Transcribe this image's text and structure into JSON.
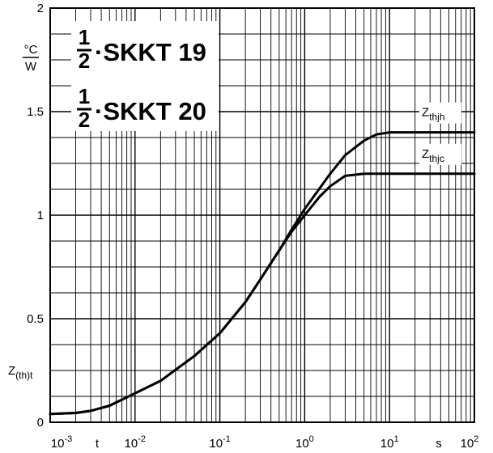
{
  "chart_data": {
    "type": "line",
    "title_prefix": "1/2",
    "title_lines": [
      "SKKT 19",
      "SKKT 20"
    ],
    "y_unit": "°C/W",
    "y_label": "Z(th)t",
    "x_symbol": "t",
    "x_unit": "s",
    "x_scale": "log",
    "xlim": [
      0.001,
      100
    ],
    "ylim": [
      0,
      2
    ],
    "x_ticks": [
      {
        "exp": "-3",
        "v": 0.001
      },
      {
        "exp": "-2",
        "v": 0.01
      },
      {
        "exp": "-1",
        "v": 0.1
      },
      {
        "exp": "0",
        "v": 1
      },
      {
        "exp": "1",
        "v": 10
      },
      {
        "exp": "2",
        "v": 100
      }
    ],
    "x_tick_base": "10",
    "y_ticks": [
      "0",
      "0.5",
      "1",
      "1.5",
      "2"
    ],
    "grid": true,
    "series": [
      {
        "name": "Z(th)jh",
        "label_main": "Z",
        "label_sub": "thjh",
        "x": [
          0.001,
          0.002,
          0.003,
          0.005,
          0.01,
          0.02,
          0.05,
          0.1,
          0.2,
          0.3,
          0.5,
          0.7,
          1,
          1.5,
          2,
          3,
          5,
          7,
          10,
          20,
          50,
          100
        ],
        "y": [
          0.04,
          0.045,
          0.055,
          0.08,
          0.14,
          0.2,
          0.32,
          0.43,
          0.58,
          0.69,
          0.83,
          0.93,
          1.03,
          1.13,
          1.2,
          1.29,
          1.36,
          1.39,
          1.4,
          1.4,
          1.4,
          1.4
        ]
      },
      {
        "name": "Z(th)jc",
        "label_main": "Z",
        "label_sub": "thjc",
        "x": [
          0.001,
          0.002,
          0.003,
          0.005,
          0.01,
          0.02,
          0.05,
          0.1,
          0.2,
          0.3,
          0.5,
          0.7,
          1,
          1.5,
          2,
          3,
          5,
          10,
          20,
          50,
          100
        ],
        "y": [
          0.04,
          0.045,
          0.055,
          0.08,
          0.14,
          0.2,
          0.32,
          0.43,
          0.58,
          0.69,
          0.83,
          0.92,
          1.0,
          1.09,
          1.14,
          1.19,
          1.2,
          1.2,
          1.2,
          1.2,
          1.2
        ]
      }
    ]
  }
}
